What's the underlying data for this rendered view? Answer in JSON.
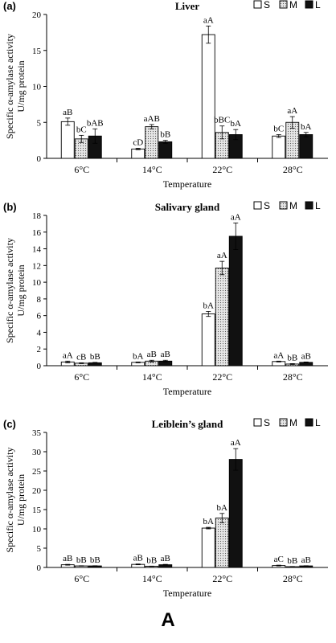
{
  "figure_label": "A",
  "legend": [
    {
      "key": "S",
      "label": "S",
      "fill": "white"
    },
    {
      "key": "M",
      "label": "M",
      "fill": "dotted"
    },
    {
      "key": "L",
      "label": "L",
      "fill": "black"
    }
  ],
  "colors": {
    "L": "#111111",
    "M": "#dddddd",
    "S": "#ffffff",
    "stroke": "#000000"
  },
  "chart_data": [
    {
      "type": "bar",
      "panel": "(a)",
      "title": "Liver",
      "xlabel": "Temperature",
      "ylabel": "Specific α-amylase activity",
      "ylabel2": "U/mg protein",
      "categories": [
        "6°C",
        "14°C",
        "22°C",
        "28°C"
      ],
      "ylim": [
        0,
        20
      ],
      "yticks": [
        0,
        5,
        10,
        15,
        20
      ],
      "series": [
        {
          "name": "S",
          "values": [
            5.1,
            1.3,
            17.2,
            3.1
          ],
          "errors": [
            0.5,
            0.1,
            1.2,
            0.2
          ],
          "labels": [
            "aB",
            "cD",
            "aA",
            "bC"
          ]
        },
        {
          "name": "M",
          "values": [
            2.7,
            4.4,
            3.6,
            5.0
          ],
          "errors": [
            0.5,
            0.3,
            0.9,
            0.8
          ],
          "labels": [
            "bC",
            "aAB",
            "bBC",
            "aA"
          ]
        },
        {
          "name": "L",
          "values": [
            3.1,
            2.3,
            3.3,
            3.3
          ],
          "errors": [
            1.0,
            0.2,
            0.7,
            0.3
          ],
          "labels": [
            "bAB",
            "bB",
            "bA",
            "bA"
          ]
        }
      ]
    },
    {
      "type": "bar",
      "panel": "(b)",
      "title": "Salivary gland",
      "xlabel": "Temperature",
      "ylabel": "Specific α-amylase activity",
      "ylabel2": "U/mg protein",
      "categories": [
        "6°C",
        "14°C",
        "22°C",
        "28°C"
      ],
      "ylim": [
        0,
        18
      ],
      "yticks": [
        0,
        2,
        4,
        6,
        8,
        10,
        12,
        14,
        16,
        18
      ],
      "series": [
        {
          "name": "S",
          "values": [
            0.45,
            0.4,
            6.2,
            0.5
          ],
          "errors": [
            0.1,
            0.05,
            0.3,
            0.05
          ],
          "labels": [
            "aA",
            "bA",
            "bA",
            "aA"
          ]
        },
        {
          "name": "M",
          "values": [
            0.3,
            0.55,
            11.7,
            0.2
          ],
          "errors": [
            0.05,
            0.1,
            0.8,
            0.05
          ],
          "labels": [
            "cB",
            "aB",
            "aA",
            "bB"
          ]
        },
        {
          "name": "L",
          "values": [
            0.35,
            0.55,
            15.5,
            0.4
          ],
          "errors": [
            0.05,
            0.1,
            1.6,
            0.05
          ],
          "labels": [
            "bB",
            "aB",
            "aA",
            "aB"
          ]
        }
      ]
    },
    {
      "type": "bar",
      "panel": "(c)",
      "title": "Leiblein’s gland",
      "xlabel": "Temperature",
      "ylabel": "Specific α-amylase activity",
      "ylabel2": "U/mg protein",
      "categories": [
        "6°C",
        "14°C",
        "22°C",
        "28°C"
      ],
      "ylim": [
        0,
        35
      ],
      "yticks": [
        0,
        5,
        10,
        15,
        20,
        25,
        30,
        35
      ],
      "series": [
        {
          "name": "S",
          "values": [
            0.7,
            0.8,
            10.2,
            0.5
          ],
          "errors": [
            0.1,
            0.1,
            0.2,
            0.1
          ],
          "labels": [
            "aB",
            "aB",
            "bA",
            "aC"
          ]
        },
        {
          "name": "M",
          "values": [
            0.4,
            0.3,
            12.8,
            0.2
          ],
          "errors": [
            0.05,
            0.05,
            1.2,
            0.05
          ],
          "labels": [
            "bB",
            "bB",
            "bA",
            "bB"
          ]
        },
        {
          "name": "L",
          "values": [
            0.4,
            0.7,
            28.0,
            0.4
          ],
          "errors": [
            0.05,
            0.1,
            2.8,
            0.05
          ],
          "labels": [
            "bB",
            "aB",
            "aA",
            "aB"
          ]
        }
      ]
    }
  ]
}
